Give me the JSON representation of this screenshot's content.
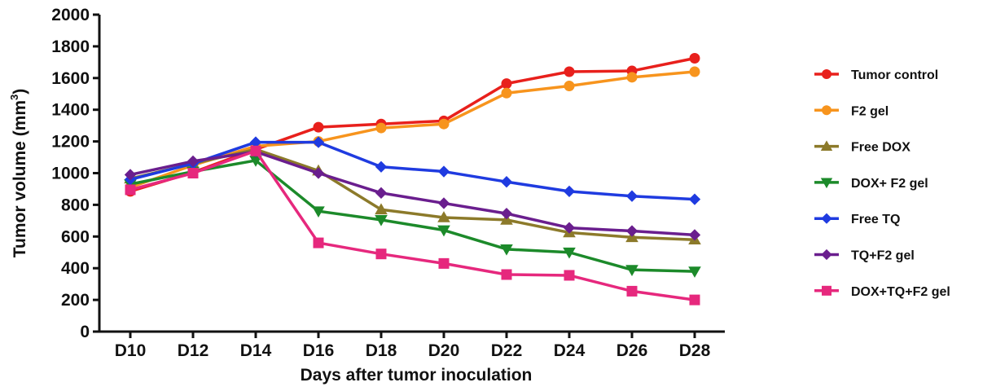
{
  "chart_data": {
    "type": "line",
    "title": "",
    "xlabel": "Days after tumor inoculation",
    "ylabel": "Tumor volume (mm",
    "ylabel_sup": "3",
    "ylabel_end": ")",
    "categories": [
      "D10",
      "D12",
      "D14",
      "D16",
      "D18",
      "D20",
      "D22",
      "D24",
      "D26",
      "D28"
    ],
    "ylim": [
      0,
      2000
    ],
    "yticks": [
      "0",
      "200",
      "400",
      "600",
      "800",
      "1000",
      "1200",
      "1400",
      "1600",
      "1800",
      "2000"
    ],
    "grid": false,
    "legend_position": "right",
    "series": [
      {
        "name": "Tumor control",
        "color": "#e8201c",
        "marker": "circle",
        "values": [
          885,
          1005,
          1150,
          1290,
          1310,
          1330,
          1565,
          1640,
          1645,
          1725
        ]
      },
      {
        "name": "F2 gel",
        "color": "#f7941d",
        "marker": "circle",
        "values": [
          910,
          1050,
          1170,
          1200,
          1285,
          1310,
          1505,
          1550,
          1605,
          1640
        ]
      },
      {
        "name": "Free DOX",
        "color": "#8c7a2a",
        "marker": "triangle-up",
        "values": [
          965,
          1060,
          1150,
          1015,
          770,
          720,
          705,
          625,
          595,
          580
        ]
      },
      {
        "name": "DOX+ F2 gel",
        "color": "#1c8a2a",
        "marker": "triangle-down",
        "values": [
          930,
          1010,
          1080,
          760,
          705,
          640,
          520,
          500,
          390,
          380
        ]
      },
      {
        "name": "Free TQ",
        "color": "#1f3be0",
        "marker": "diamond",
        "values": [
          960,
          1060,
          1195,
          1195,
          1040,
          1010,
          945,
          885,
          855,
          835
        ]
      },
      {
        "name": "TQ+F2 gel",
        "color": "#6a1e8e",
        "marker": "diamond",
        "values": [
          990,
          1075,
          1135,
          1000,
          875,
          810,
          745,
          655,
          635,
          610
        ]
      },
      {
        "name": "DOX+TQ+F2 gel",
        "color": "#e6287d",
        "marker": "square",
        "values": [
          895,
          1000,
          1140,
          560,
          490,
          430,
          360,
          355,
          255,
          200
        ]
      }
    ]
  }
}
